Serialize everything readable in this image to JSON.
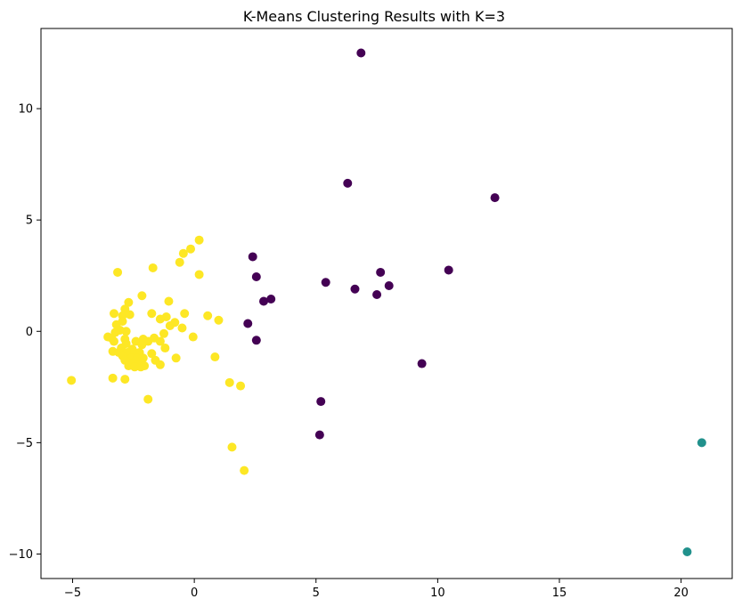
{
  "chart_data": {
    "type": "scatter",
    "title": "K-Means Clustering Results with K=3",
    "xlabel": "",
    "ylabel": "",
    "xlim": [
      -6.3,
      22.1
    ],
    "ylim": [
      -11.1,
      13.6
    ],
    "x_ticks": [
      -5,
      0,
      5,
      10,
      15,
      20
    ],
    "y_ticks": [
      -10,
      -5,
      0,
      5,
      10
    ],
    "x_tick_labels": [
      "−5",
      "0",
      "5",
      "10",
      "15",
      "20"
    ],
    "y_tick_labels": [
      "−10",
      "−5",
      "0",
      "5",
      "10"
    ],
    "grid": false,
    "legend": "none",
    "series": [
      {
        "cluster": 0,
        "color": "#440154",
        "points": [
          [
            6.85,
            12.5
          ],
          [
            6.3,
            6.65
          ],
          [
            12.35,
            6.0
          ],
          [
            2.4,
            3.35
          ],
          [
            2.55,
            2.45
          ],
          [
            5.4,
            2.2
          ],
          [
            6.6,
            1.9
          ],
          [
            7.65,
            2.65
          ],
          [
            8.0,
            2.05
          ],
          [
            7.5,
            1.65
          ],
          [
            10.45,
            2.75
          ],
          [
            2.85,
            1.35
          ],
          [
            3.15,
            1.45
          ],
          [
            2.2,
            0.35
          ],
          [
            2.55,
            -0.4
          ],
          [
            9.35,
            -1.45
          ],
          [
            5.2,
            -3.15
          ],
          [
            5.15,
            -4.65
          ]
        ]
      },
      {
        "cluster": 1,
        "color": "#21918c",
        "points": [
          [
            20.85,
            -5.0
          ],
          [
            20.25,
            -9.9
          ]
        ]
      },
      {
        "cluster": 2,
        "color": "#fde725",
        "points": [
          [
            0.2,
            4.1
          ],
          [
            -0.15,
            3.7
          ],
          [
            -0.45,
            3.5
          ],
          [
            -0.6,
            3.1
          ],
          [
            0.2,
            2.55
          ],
          [
            -3.15,
            2.65
          ],
          [
            -1.7,
            2.85
          ],
          [
            -2.15,
            1.6
          ],
          [
            -1.05,
            1.35
          ],
          [
            -2.7,
            1.3
          ],
          [
            -2.85,
            1.0
          ],
          [
            -1.75,
            0.8
          ],
          [
            -3.3,
            0.8
          ],
          [
            -2.95,
            0.7
          ],
          [
            -2.65,
            0.75
          ],
          [
            -1.15,
            0.65
          ],
          [
            -0.4,
            0.8
          ],
          [
            -1.4,
            0.55
          ],
          [
            -0.8,
            0.4
          ],
          [
            0.55,
            0.7
          ],
          [
            1.0,
            0.5
          ],
          [
            -2.95,
            0.45
          ],
          [
            -3.2,
            0.3
          ],
          [
            -1.0,
            0.25
          ],
          [
            -0.5,
            0.15
          ],
          [
            -3.05,
            0.05
          ],
          [
            -2.8,
            0.0
          ],
          [
            -3.25,
            -0.05
          ],
          [
            -1.25,
            -0.1
          ],
          [
            -3.55,
            -0.25
          ],
          [
            -3.4,
            -0.3
          ],
          [
            -1.65,
            -0.3
          ],
          [
            -2.85,
            -0.35
          ],
          [
            -2.1,
            -0.35
          ],
          [
            -3.3,
            -0.45
          ],
          [
            -2.4,
            -0.45
          ],
          [
            -1.9,
            -0.45
          ],
          [
            -1.4,
            -0.45
          ],
          [
            -0.05,
            -0.25
          ],
          [
            -2.8,
            -0.55
          ],
          [
            -2.15,
            -0.6
          ],
          [
            -3.0,
            -0.75
          ],
          [
            -2.55,
            -0.8
          ],
          [
            -1.2,
            -0.75
          ],
          [
            -3.35,
            -0.9
          ],
          [
            -3.1,
            -0.95
          ],
          [
            -2.75,
            -0.95
          ],
          [
            -2.45,
            -0.95
          ],
          [
            -2.25,
            -0.95
          ],
          [
            -1.75,
            -1.0
          ],
          [
            -2.95,
            -1.1
          ],
          [
            -2.6,
            -1.2
          ],
          [
            -2.35,
            -1.2
          ],
          [
            -2.1,
            -1.2
          ],
          [
            -0.75,
            -1.2
          ],
          [
            0.85,
            -1.15
          ],
          [
            -2.85,
            -1.3
          ],
          [
            -1.6,
            -1.3
          ],
          [
            -2.55,
            -1.45
          ],
          [
            -2.3,
            -1.5
          ],
          [
            -2.05,
            -1.55
          ],
          [
            -1.4,
            -1.5
          ],
          [
            -2.7,
            -1.55
          ],
          [
            -2.45,
            -1.6
          ],
          [
            -2.2,
            -1.6
          ],
          [
            -5.05,
            -2.2
          ],
          [
            -3.35,
            -2.1
          ],
          [
            -2.85,
            -2.15
          ],
          [
            1.45,
            -2.3
          ],
          [
            1.9,
            -2.45
          ],
          [
            -1.9,
            -3.05
          ],
          [
            1.55,
            -5.2
          ],
          [
            2.05,
            -6.25
          ]
        ]
      }
    ]
  }
}
